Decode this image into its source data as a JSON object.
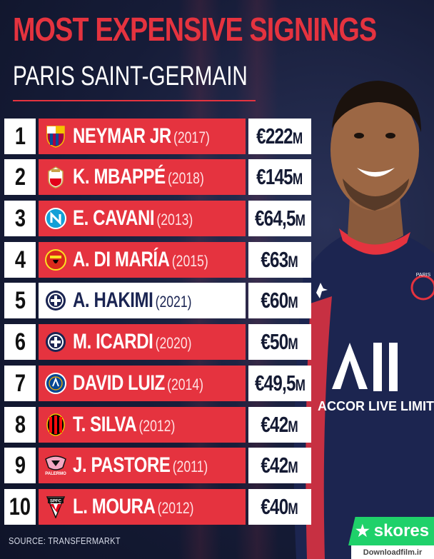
{
  "header": {
    "title": "MOST EXPENSIVE SIGNINGS",
    "subtitle": "PARIS SAINT-GERMAIN"
  },
  "rows": [
    {
      "rank": "1",
      "name": "NEYMAR JR",
      "year": "(2017)",
      "fee": "€222",
      "unit": "M",
      "club_icon": "barcelona-crest-icon",
      "style": "red"
    },
    {
      "rank": "2",
      "name": "K. MBAPPÉ",
      "year": "(2018)",
      "fee": "€145",
      "unit": "M",
      "club_icon": "monaco-crest-icon",
      "style": "red"
    },
    {
      "rank": "3",
      "name": "E. CAVANI",
      "year": "(2013)",
      "fee": "€64,5",
      "unit": "M",
      "club_icon": "napoli-crest-icon",
      "style": "red"
    },
    {
      "rank": "4",
      "name": "A. DI MARÍA",
      "year": "(2015)",
      "fee": "€63",
      "unit": "M",
      "club_icon": "manchester-united-crest-icon",
      "style": "red"
    },
    {
      "rank": "5",
      "name": "A. HAKIMI",
      "year": "(2021)",
      "fee": "€60",
      "unit": "M",
      "club_icon": "inter-crest-icon",
      "style": "white"
    },
    {
      "rank": "6",
      "name": "M. ICARDI",
      "year": "(2020)",
      "fee": "€50",
      "unit": "M",
      "club_icon": "inter-crest-icon",
      "style": "red"
    },
    {
      "rank": "7",
      "name": "DAVID LUIZ",
      "year": "(2014)",
      "fee": "€49,5",
      "unit": "M",
      "club_icon": "chelsea-crest-icon",
      "style": "red"
    },
    {
      "rank": "8",
      "name": "T. SILVA",
      "year": "(2012)",
      "fee": "€42",
      "unit": "M",
      "club_icon": "ac-milan-crest-icon",
      "style": "red"
    },
    {
      "rank": "9",
      "name": "J. PASTORE",
      "year": "(2011)",
      "fee": "€42",
      "unit": "M",
      "club_icon": "palermo-crest-icon",
      "style": "red"
    },
    {
      "rank": "10",
      "name": "L. MOURA",
      "year": "(2012)",
      "fee": "€40",
      "unit": "M",
      "club_icon": "sao-paulo-crest-icon",
      "style": "red"
    }
  ],
  "jersey": {
    "sponsor": "ACCOR LIVE LIMIT",
    "crest_text": "PARIS"
  },
  "footer": {
    "source": "SOURCE: TRANSFERMARKT",
    "brand": "skores",
    "watermark": "Downloadfilm.ir"
  },
  "logos": {
    "palermo_text": "PALERMO",
    "sao_paulo_text": "SPFC"
  },
  "colors": {
    "accent_red": "#e5333f",
    "background_navy": "#141a33",
    "brand_green": "#1fd16a"
  }
}
